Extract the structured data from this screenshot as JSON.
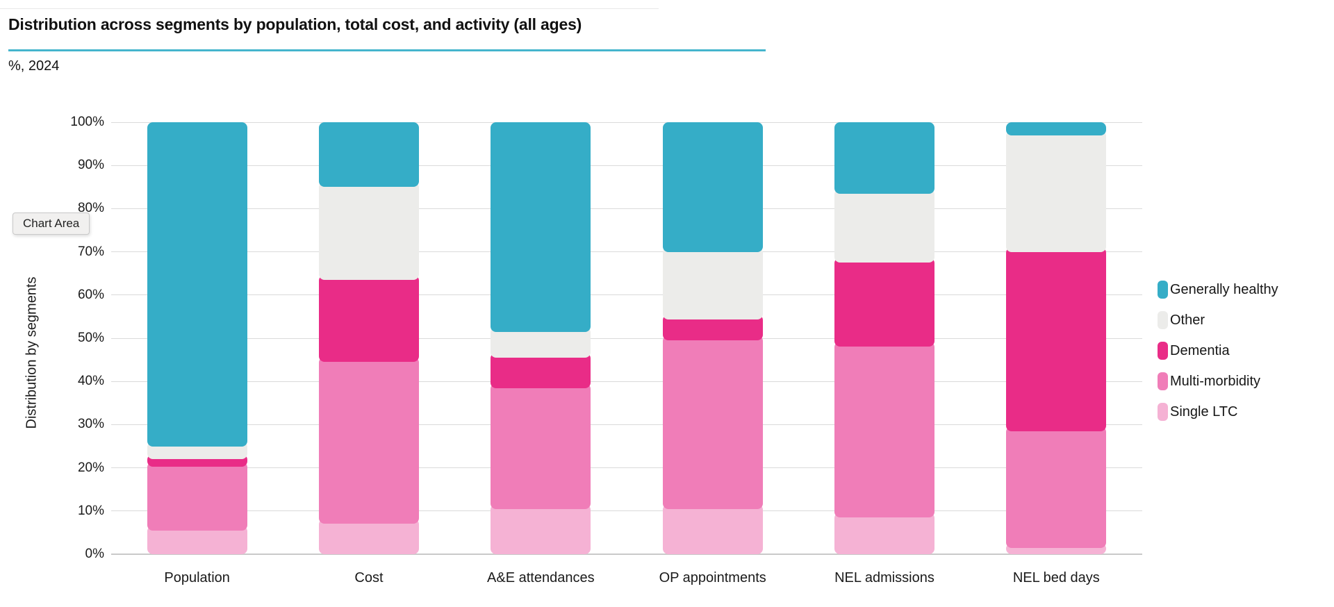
{
  "page": {
    "title": "Distribution across segments by population, total cost, and activity (all ages)",
    "subtitle": "%, 2024"
  },
  "tooltip": {
    "label": "Chart Area"
  },
  "colors": {
    "accent_teal": "#45b5cd",
    "gridline": "#dadada",
    "axis_baseline": "#c9c9c9",
    "text": "#1a1a1a"
  },
  "chart_data": {
    "type": "bar",
    "stacked": true,
    "title": "Distribution across segments by population, total cost, and activity (all ages)",
    "subtitle": "%, 2024",
    "xlabel": "",
    "ylabel": "Distribution by segments",
    "ylim": [
      0,
      100
    ],
    "y_tick_step": 10,
    "y_ticks": [
      "0%",
      "10%",
      "20%",
      "30%",
      "40%",
      "50%",
      "60%",
      "70%",
      "80%",
      "90%",
      "100%"
    ],
    "grid": true,
    "legend_position": "right",
    "categories": [
      "Population",
      "Cost",
      "A&E attendances",
      "OP appointments",
      "NEL admissions",
      "NEL bed days"
    ],
    "series": [
      {
        "name": "Single LTC",
        "color": "#f5b2d4",
        "values": [
          5.5,
          7.0,
          10.5,
          10.5,
          8.5,
          1.5
        ]
      },
      {
        "name": "Multi-morbidity",
        "color": "#f07db8",
        "values": [
          14.7,
          37.5,
          28.0,
          39.0,
          39.5,
          27.0
        ]
      },
      {
        "name": "Dementia",
        "color": "#e92c87",
        "values": [
          1.8,
          19.0,
          7.0,
          4.8,
          19.5,
          41.5
        ]
      },
      {
        "name": "Other",
        "color": "#ececea",
        "values": [
          3.0,
          21.5,
          6.0,
          15.7,
          16.0,
          27.0
        ]
      },
      {
        "name": "Generally healthy",
        "color": "#35adc7",
        "values": [
          75.0,
          15.0,
          48.5,
          30.0,
          16.5,
          3.0
        ]
      }
    ],
    "legend_order_top_to_bottom": [
      "Generally healthy",
      "Other",
      "Dementia",
      "Multi-morbidity",
      "Single LTC"
    ]
  }
}
